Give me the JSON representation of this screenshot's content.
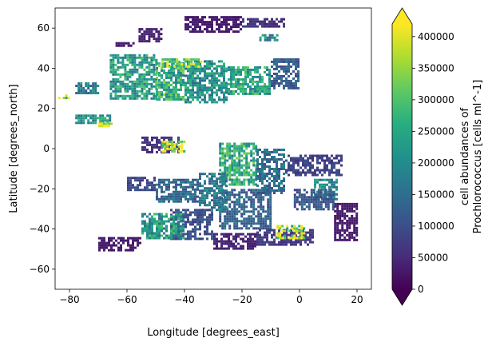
{
  "chart_data": {
    "type": "heatmap",
    "xlabel": "Longitude [degrees_east]",
    "ylabel": "Latitude [degrees_north]",
    "xlim": [
      -85,
      25
    ],
    "ylim": [
      -70,
      70
    ],
    "x_ticks": [
      -80,
      -60,
      -40,
      -20,
      0,
      20
    ],
    "y_ticks": [
      -60,
      -40,
      -20,
      0,
      20,
      40,
      60
    ],
    "colorbar": {
      "label_line1": "cell abundances of",
      "label_line2": "Prochlorococcus [cells ml^-1]",
      "min": 0,
      "max": 420000,
      "ticks": [
        0,
        50000,
        100000,
        150000,
        200000,
        250000,
        300000,
        350000,
        400000
      ],
      "extend": "both",
      "colormap": "viridis"
    },
    "regions": [
      {
        "lon": [
          -84,
          -80
        ],
        "lat": [
          25,
          27
        ],
        "value": 330000
      },
      {
        "lon": [
          -78,
          -70
        ],
        "lat": [
          28,
          33
        ],
        "value": 180000
      },
      {
        "lon": [
          -66,
          -50
        ],
        "lat": [
          25,
          47
        ],
        "value": 230000
      },
      {
        "lon": [
          -50,
          -40
        ],
        "lat": [
          24,
          43
        ],
        "value": 260000
      },
      {
        "lon": [
          -40,
          -25
        ],
        "lat": [
          23,
          44
        ],
        "value": 210000
      },
      {
        "lon": [
          -25,
          -10
        ],
        "lat": [
          27,
          41
        ],
        "value": 240000
      },
      {
        "lon": [
          -10,
          0
        ],
        "lat": [
          30,
          45
        ],
        "value": 120000
      },
      {
        "lon": [
          -48,
          -34
        ],
        "lat": [
          41,
          45
        ],
        "value": 330000
      },
      {
        "lon": [
          -56,
          -48
        ],
        "lat": [
          54,
          60
        ],
        "value": 40000
      },
      {
        "lon": [
          -40,
          -20
        ],
        "lat": [
          58,
          66
        ],
        "value": 30000
      },
      {
        "lon": [
          -20,
          -5
        ],
        "lat": [
          61,
          65
        ],
        "value": 60000
      },
      {
        "lon": [
          -14,
          -8
        ],
        "lat": [
          54,
          57
        ],
        "value": 200000
      },
      {
        "lon": [
          -64,
          -58
        ],
        "lat": [
          51,
          53
        ],
        "value": 30000
      },
      {
        "lon": [
          -78,
          -66
        ],
        "lat": [
          13,
          17
        ],
        "value": 210000
      },
      {
        "lon": [
          -70,
          -65
        ],
        "lat": [
          11,
          13
        ],
        "value": 370000
      },
      {
        "lon": [
          -55,
          -42
        ],
        "lat": [
          -2,
          6
        ],
        "value": 60000
      },
      {
        "lon": [
          -48,
          -40
        ],
        "lat": [
          -1,
          4
        ],
        "value": 390000
      },
      {
        "lon": [
          -28,
          -15
        ],
        "lat": [
          -18,
          3
        ],
        "value": 250000
      },
      {
        "lon": [
          -15,
          -5
        ],
        "lat": [
          -22,
          0
        ],
        "value": 150000
      },
      {
        "lon": [
          -5,
          15
        ],
        "lat": [
          -13,
          -3
        ],
        "value": 80000
      },
      {
        "lon": [
          5,
          13
        ],
        "lat": [
          -25,
          -15
        ],
        "value": 200000
      },
      {
        "lon": [
          12,
          20
        ],
        "lat": [
          -45,
          -27
        ],
        "value": 30000
      },
      {
        "lon": [
          -2,
          12
        ],
        "lat": [
          -30,
          -20
        ],
        "value": 110000
      },
      {
        "lon": [
          -28,
          -10
        ],
        "lat": [
          -40,
          -20
        ],
        "value": 130000
      },
      {
        "lon": [
          -35,
          -25
        ],
        "lat": [
          -30,
          -12
        ],
        "value": 170000
      },
      {
        "lon": [
          -50,
          -35
        ],
        "lat": [
          -26,
          -15
        ],
        "value": 140000
      },
      {
        "lon": [
          -45,
          -30
        ],
        "lat": [
          -45,
          -30
        ],
        "value": 100000
      },
      {
        "lon": [
          -55,
          -40
        ],
        "lat": [
          -45,
          -32
        ],
        "value": 230000
      },
      {
        "lon": [
          -15,
          5
        ],
        "lat": [
          -48,
          -40
        ],
        "value": 70000
      },
      {
        "lon": [
          -30,
          -15
        ],
        "lat": [
          -50,
          -42
        ],
        "value": 40000
      },
      {
        "lon": [
          -70,
          -55
        ],
        "lat": [
          -51,
          -44
        ],
        "value": 30000
      },
      {
        "lon": [
          -60,
          -50
        ],
        "lat": [
          -20,
          -14
        ],
        "value": 90000
      },
      {
        "lon": [
          -8,
          2
        ],
        "lat": [
          -45,
          -38
        ],
        "value": 360000
      }
    ]
  }
}
